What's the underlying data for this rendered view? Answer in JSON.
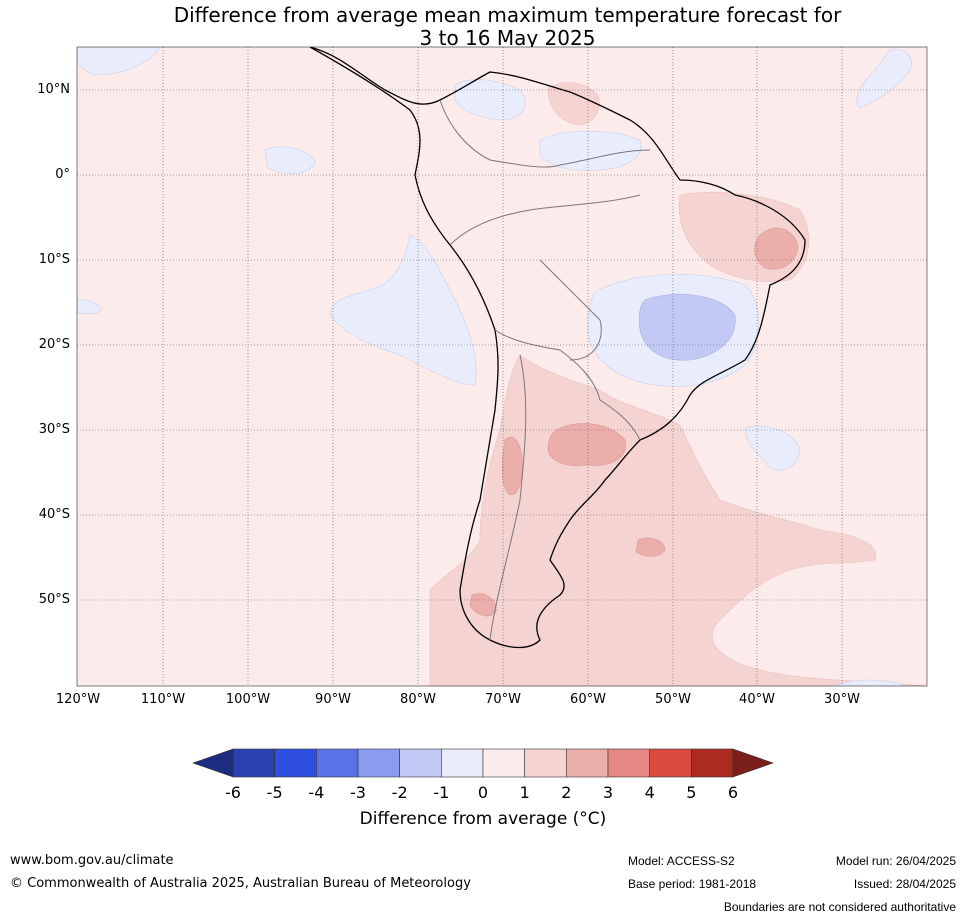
{
  "title_line1": "Difference from average mean maximum temperature forecast for",
  "title_line2": "3 to 16 May 2025",
  "lat_labels": [
    "10°N",
    "0°",
    "10°S",
    "20°S",
    "30°S",
    "40°S",
    "50°S"
  ],
  "lon_labels": [
    "120°W",
    "110°W",
    "100°W",
    "90°W",
    "80°W",
    "70°W",
    "60°W",
    "50°W",
    "40°W",
    "30°W"
  ],
  "colorbar": {
    "ticks": [
      "-6",
      "-5",
      "-4",
      "-3",
      "-2",
      "-1",
      "0",
      "1",
      "2",
      "3",
      "4",
      "5",
      "6"
    ],
    "colors": [
      "#2a3fb0",
      "#2f4fe0",
      "#5a72e8",
      "#8a9cef",
      "#c2c9f4",
      "#e9ecfb",
      "#fbebea",
      "#f5d3d1",
      "#ecaeaa",
      "#e58883",
      "#db4a3f",
      "#ac2a20"
    ],
    "low_extend_color": "#1e2c80",
    "high_extend_color": "#7a1f1a",
    "label": "Difference from average (°C)"
  },
  "footer": {
    "website": "www.bom.gov.au/climate",
    "copyright": "© Commonwealth of Australia 2025, Australian Bureau of Meteorology",
    "model": "Model: ACCESS-S2",
    "base_period": "Base period: 1981-2018",
    "model_run": "Model run: 26/04/2025",
    "issued": "Issued: 28/04/2025",
    "disclaimer": "Boundaries are not considered authoritative"
  }
}
